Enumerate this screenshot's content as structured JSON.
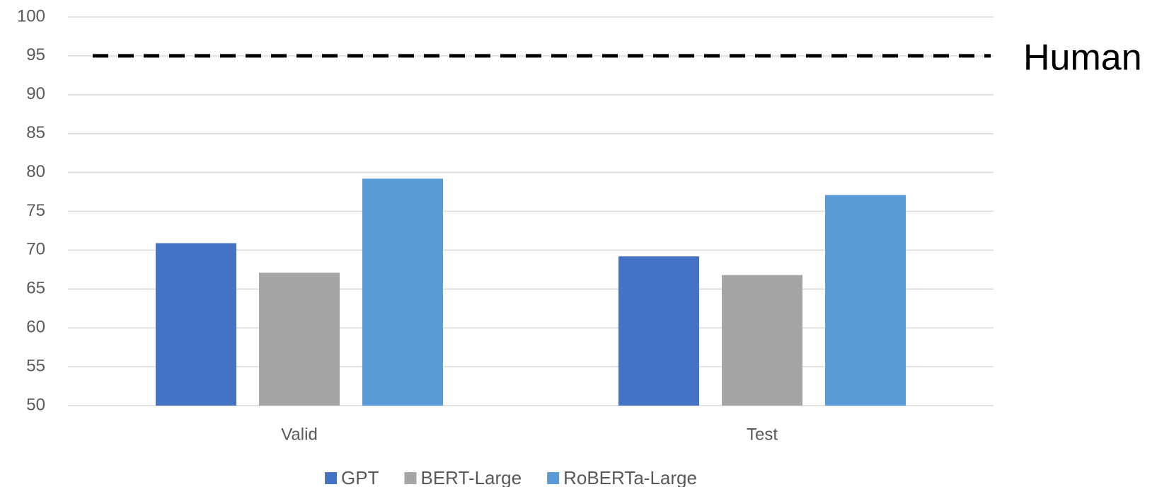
{
  "chart_data": {
    "type": "bar",
    "categories": [
      "Valid",
      "Test"
    ],
    "series": [
      {
        "name": "GPT",
        "color": "#4472c4",
        "values": [
          70.9,
          69.2
        ]
      },
      {
        "name": "BERT-Large",
        "color": "#a5a5a5",
        "values": [
          67.1,
          66.8
        ]
      },
      {
        "name": "RoBERTa-Large",
        "color": "#5b9bd5",
        "values": [
          79.2,
          77.1
        ]
      }
    ],
    "ylim": [
      50,
      100
    ],
    "yticks": [
      50,
      55,
      60,
      65,
      70,
      75,
      80,
      85,
      90,
      95,
      100
    ],
    "grid": true,
    "reference_line": {
      "value": 95,
      "label": "Human"
    },
    "legend": "bottom"
  }
}
